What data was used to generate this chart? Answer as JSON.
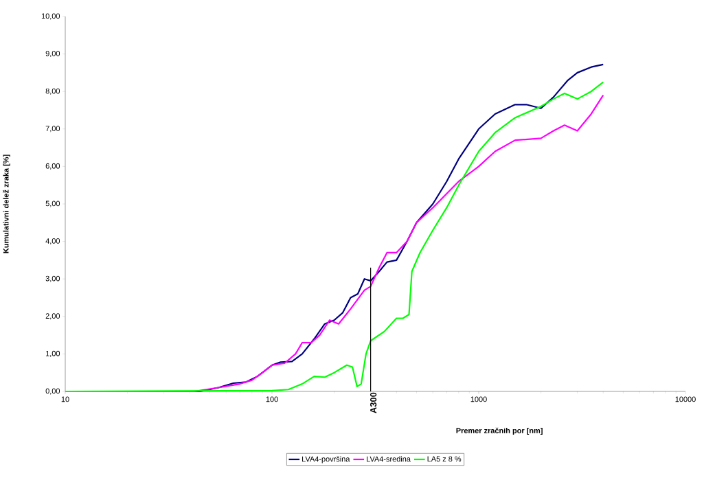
{
  "chart_data": {
    "type": "line",
    "xlabel": "Premer zračnih por [nm]",
    "ylabel": "Kumulativni delež zraka [%]",
    "log": "x",
    "xlim": [
      10,
      10000
    ],
    "xticks": [
      10,
      100,
      1000,
      10000
    ],
    "ylim": [
      0,
      10
    ],
    "yticks": [
      {
        "value": 0,
        "label": "0,00"
      },
      {
        "value": 1,
        "label": "1,00"
      },
      {
        "value": 2,
        "label": "2,00"
      },
      {
        "value": 3,
        "label": "3,00"
      },
      {
        "value": 4,
        "label": "4,00"
      },
      {
        "value": 5,
        "label": "5,00"
      },
      {
        "value": 6,
        "label": "6,00"
      },
      {
        "value": 7,
        "label": "7,00"
      },
      {
        "value": 8,
        "label": "8,00"
      },
      {
        "value": 9,
        "label": "9,00"
      },
      {
        "value": 10,
        "label": "10,00"
      }
    ],
    "grid": false,
    "legend": "bottom",
    "marker": "none",
    "line_style": "solid",
    "ref_lines": [
      {
        "axis": "x",
        "value": 300,
        "label": "A300",
        "color": "#000000"
      }
    ],
    "series": [
      {
        "name": "LVA4-površina",
        "color": "#000080",
        "x": [
          10,
          45,
          55,
          65,
          75,
          85,
          100,
          110,
          125,
          140,
          160,
          180,
          200,
          220,
          240,
          260,
          280,
          300,
          330,
          360,
          400,
          450,
          500,
          600,
          700,
          800,
          1000,
          1200,
          1500,
          1700,
          2000,
          2300,
          2700,
          3000,
          3500,
          4000
        ],
        "values": [
          0,
          0,
          0.1,
          0.22,
          0.25,
          0.4,
          0.7,
          0.78,
          0.8,
          1.0,
          1.4,
          1.8,
          1.9,
          2.1,
          2.5,
          2.6,
          3.0,
          2.95,
          3.2,
          3.45,
          3.5,
          4.0,
          4.5,
          5.0,
          5.6,
          6.2,
          7.0,
          7.4,
          7.65,
          7.65,
          7.55,
          7.85,
          8.3,
          8.5,
          8.65,
          8.72
        ]
      },
      {
        "name": "LVA4-sredina",
        "color": "#ff00ff",
        "x": [
          10,
          42,
          55,
          70,
          80,
          90,
          100,
          115,
          130,
          140,
          155,
          170,
          190,
          210,
          240,
          280,
          300,
          330,
          360,
          400,
          450,
          500,
          600,
          800,
          1000,
          1200,
          1500,
          2000,
          2300,
          2600,
          3000,
          3500,
          4000
        ],
        "values": [
          0,
          0,
          0.1,
          0.2,
          0.3,
          0.5,
          0.7,
          0.75,
          1.0,
          1.3,
          1.3,
          1.5,
          1.9,
          1.8,
          2.2,
          2.7,
          2.8,
          3.3,
          3.7,
          3.7,
          4.0,
          4.5,
          4.9,
          5.6,
          6.0,
          6.4,
          6.7,
          6.75,
          6.95,
          7.1,
          6.95,
          7.4,
          7.9
        ]
      },
      {
        "name": "LA5 z 8 %",
        "color": "#00ff00",
        "x": [
          10,
          100,
          120,
          140,
          160,
          180,
          200,
          230,
          245,
          258,
          270,
          285,
          300,
          350,
          400,
          430,
          460,
          475,
          520,
          600,
          700,
          800,
          1000,
          1200,
          1500,
          2000,
          2300,
          2600,
          3000,
          3500,
          4000
        ],
        "values": [
          0,
          0.02,
          0.05,
          0.2,
          0.4,
          0.38,
          0.5,
          0.7,
          0.65,
          0.13,
          0.2,
          1.0,
          1.35,
          1.6,
          1.95,
          1.95,
          2.05,
          3.2,
          3.7,
          4.3,
          4.9,
          5.5,
          6.4,
          6.9,
          7.3,
          7.6,
          7.8,
          7.95,
          7.8,
          8.0,
          8.25
        ]
      }
    ]
  }
}
